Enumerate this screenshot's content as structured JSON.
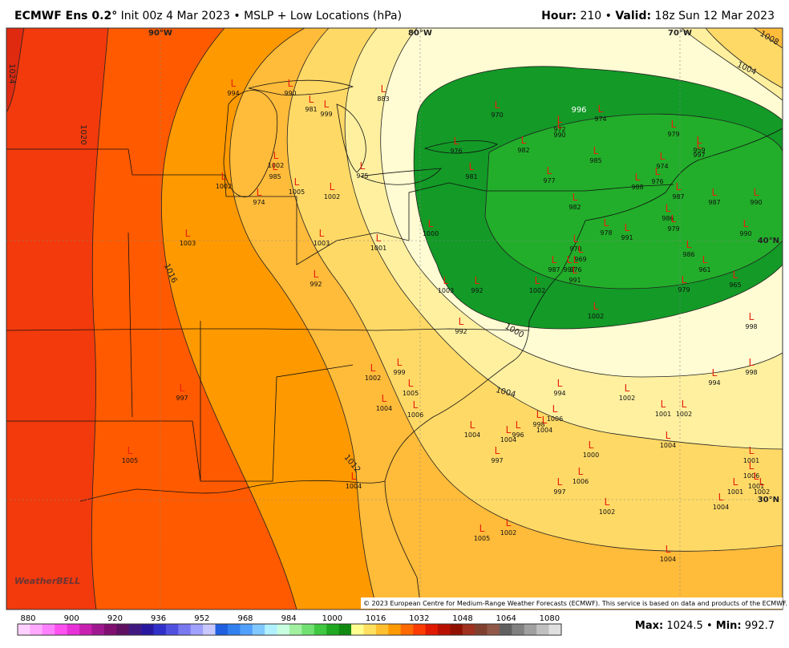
{
  "header": {
    "model": "ECMWF Ens 0.2°",
    "subtitle": "Init 00z 4 Mar 2023 • MSLP + Low Locations (hPa)",
    "hour_label": "Hour:",
    "hour": "210",
    "separator": "•",
    "valid_label": "Valid:",
    "valid": "18z Sun 12 Mar 2023"
  },
  "map": {
    "graticule_labels": [
      "90°W",
      "80°W",
      "70°W",
      "40°N",
      "30°N"
    ],
    "isobar_labels": [
      1024,
      1020,
      1016,
      1012,
      1008,
      1004,
      1004,
      1000,
      996
    ],
    "low_marker": "L",
    "lows": [
      994,
      990,
      981,
      999,
      883,
      970,
      972,
      990,
      974,
      979,
      959,
      997,
      976,
      982,
      985,
      981,
      977,
      974,
      976,
      988,
      1002,
      985,
      1005,
      1002,
      974,
      975,
      1002,
      987,
      987,
      990,
      982,
      986,
      979,
      978,
      991,
      1000,
      1003,
      1003,
      1001,
      990,
      986,
      961,
      965,
      979,
      970,
      969,
      987,
      997,
      976,
      991,
      992,
      1003,
      992,
      1002,
      1002,
      992,
      998,
      1002,
      999,
      1005,
      998,
      994,
      994,
      1002,
      997,
      1004,
      1006,
      1001,
      1002,
      1006,
      998,
      1004,
      1004,
      996,
      1004,
      1004,
      1000,
      997,
      1005,
      1001,
      1006,
      1001,
      1006,
      1004,
      997,
      1001,
      1002,
      1004,
      1002,
      1002,
      1005,
      1004
    ],
    "logo": "WeatherBELL",
    "copyright": "© 2023 European Centre for Medium-Range Weather Forecasts (ECMWF). This service is based on data and products of the ECMWF."
  },
  "footer": {
    "colorbar_ticks": [
      880,
      900,
      920,
      936,
      952,
      968,
      984,
      1000,
      1016,
      1032,
      1048,
      1064,
      1080
    ],
    "max_label": "Max:",
    "max": 1024.5,
    "separator": "•",
    "min_label": "Min:",
    "min": 992.7
  }
}
